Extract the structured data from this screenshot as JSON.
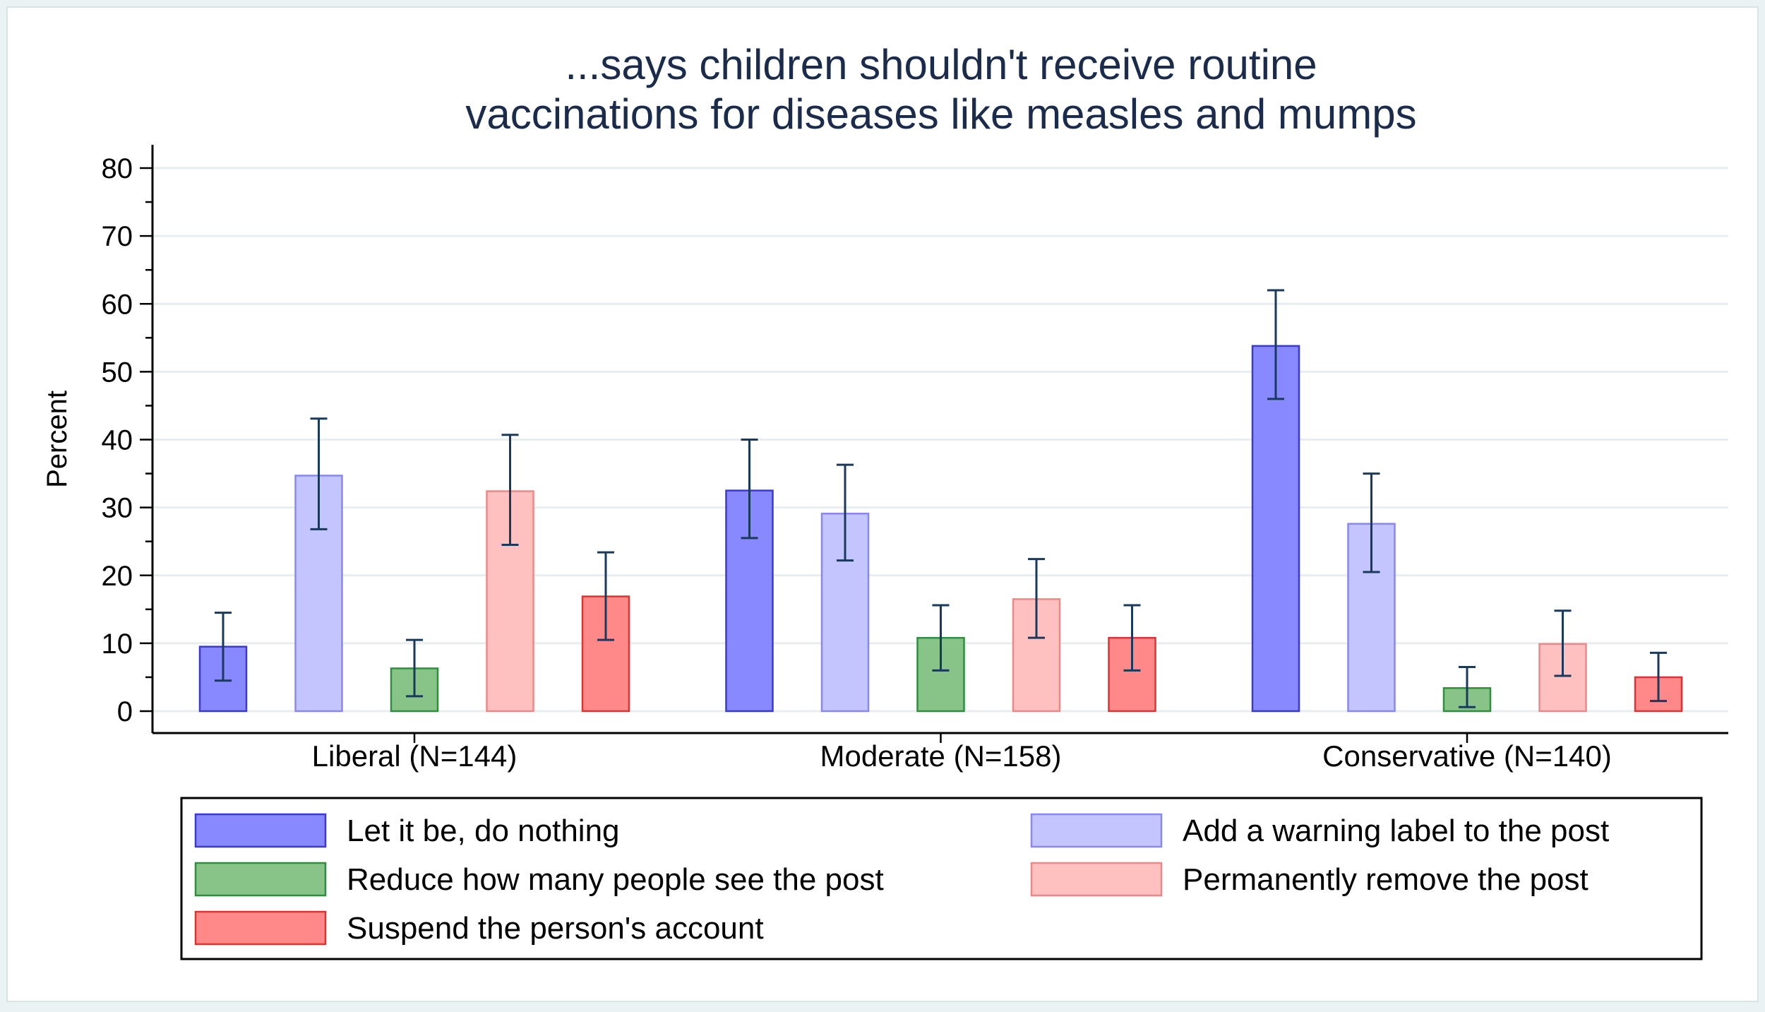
{
  "chart_data": {
    "type": "bar",
    "title": [
      "...says children shouldn't receive routine",
      "vaccinations for diseases like measles and mumps"
    ],
    "xlabel": "",
    "ylabel": "Percent",
    "ylim": [
      0,
      80
    ],
    "yticks": [
      "0",
      "10",
      "20",
      "30",
      "40",
      "50",
      "60",
      "70",
      "80"
    ],
    "grid": true,
    "legend_position": "bottom",
    "categories": [
      "Liberal (N=144)",
      "Moderate (N=158)",
      "Conservative (N=140)"
    ],
    "series": [
      {
        "name": "Let it be, do nothing",
        "color": "#8888ff",
        "edge": "#3a3acc",
        "values": [
          9.5,
          32.5,
          53.8
        ],
        "ci_low": [
          4.5,
          25.5,
          46.0
        ],
        "ci_high": [
          14.5,
          40.0,
          62.0
        ]
      },
      {
        "name": "Add a warning label to the post",
        "color": "#c4c4ff",
        "edge": "#8888ee",
        "values": [
          34.7,
          29.1,
          27.6
        ],
        "ci_low": [
          26.8,
          22.2,
          20.5
        ],
        "ci_high": [
          43.1,
          36.3,
          35.0
        ]
      },
      {
        "name": "Reduce how many people see the post",
        "color": "#88c488",
        "edge": "#2f8f3f",
        "values": [
          6.3,
          10.8,
          3.4
        ],
        "ci_low": [
          2.2,
          6.0,
          0.6
        ],
        "ci_high": [
          10.5,
          15.6,
          6.5
        ]
      },
      {
        "name": "Permanently remove the post",
        "color": "#ffc0c0",
        "edge": "#ee8888",
        "values": [
          32.4,
          16.5,
          9.9
        ],
        "ci_low": [
          24.5,
          10.8,
          5.2
        ],
        "ci_high": [
          40.7,
          22.4,
          14.8
        ]
      },
      {
        "name": "Suspend the person's account",
        "color": "#ff8888",
        "edge": "#dd3333",
        "values": [
          16.9,
          10.8,
          5.0
        ],
        "ci_low": [
          10.5,
          6.0,
          1.5
        ],
        "ci_high": [
          23.4,
          15.6,
          8.6
        ]
      }
    ],
    "error_bar_color": "#1a3a5c"
  }
}
